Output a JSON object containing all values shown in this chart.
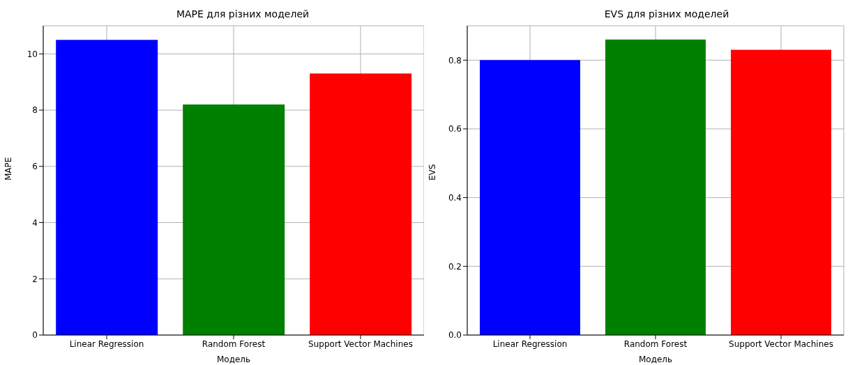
{
  "chart_data": [
    {
      "type": "bar",
      "title": "MAPE для різних моделей",
      "xlabel": "Модель",
      "ylabel": "MAPE",
      "categories": [
        "Linear Regression",
        "Random Forest",
        "Support Vector Machines"
      ],
      "values": [
        10.5,
        8.2,
        9.3
      ],
      "colors": [
        "#0000ff",
        "#008000",
        "#ff0000"
      ],
      "ylim": [
        0,
        11
      ],
      "yticks": [
        0,
        2,
        4,
        6,
        8,
        10
      ],
      "grid": true
    },
    {
      "type": "bar",
      "title": "EVS для різних моделей",
      "xlabel": "Модель",
      "ylabel": "EVS",
      "categories": [
        "Linear Regression",
        "Random Forest",
        "Support Vector Machines"
      ],
      "values": [
        0.8,
        0.86,
        0.83
      ],
      "colors": [
        "#0000ff",
        "#008000",
        "#ff0000"
      ],
      "ylim": [
        0,
        0.9
      ],
      "yticks": [
        {
          "value": 0,
          "label": "0.0"
        },
        {
          "value": 0.2,
          "label": "0.2"
        },
        {
          "value": 0.4,
          "label": "0.4"
        },
        {
          "value": 0.6,
          "label": "0.6"
        },
        {
          "value": 0.8,
          "label": "0.8"
        }
      ],
      "grid": true
    }
  ]
}
